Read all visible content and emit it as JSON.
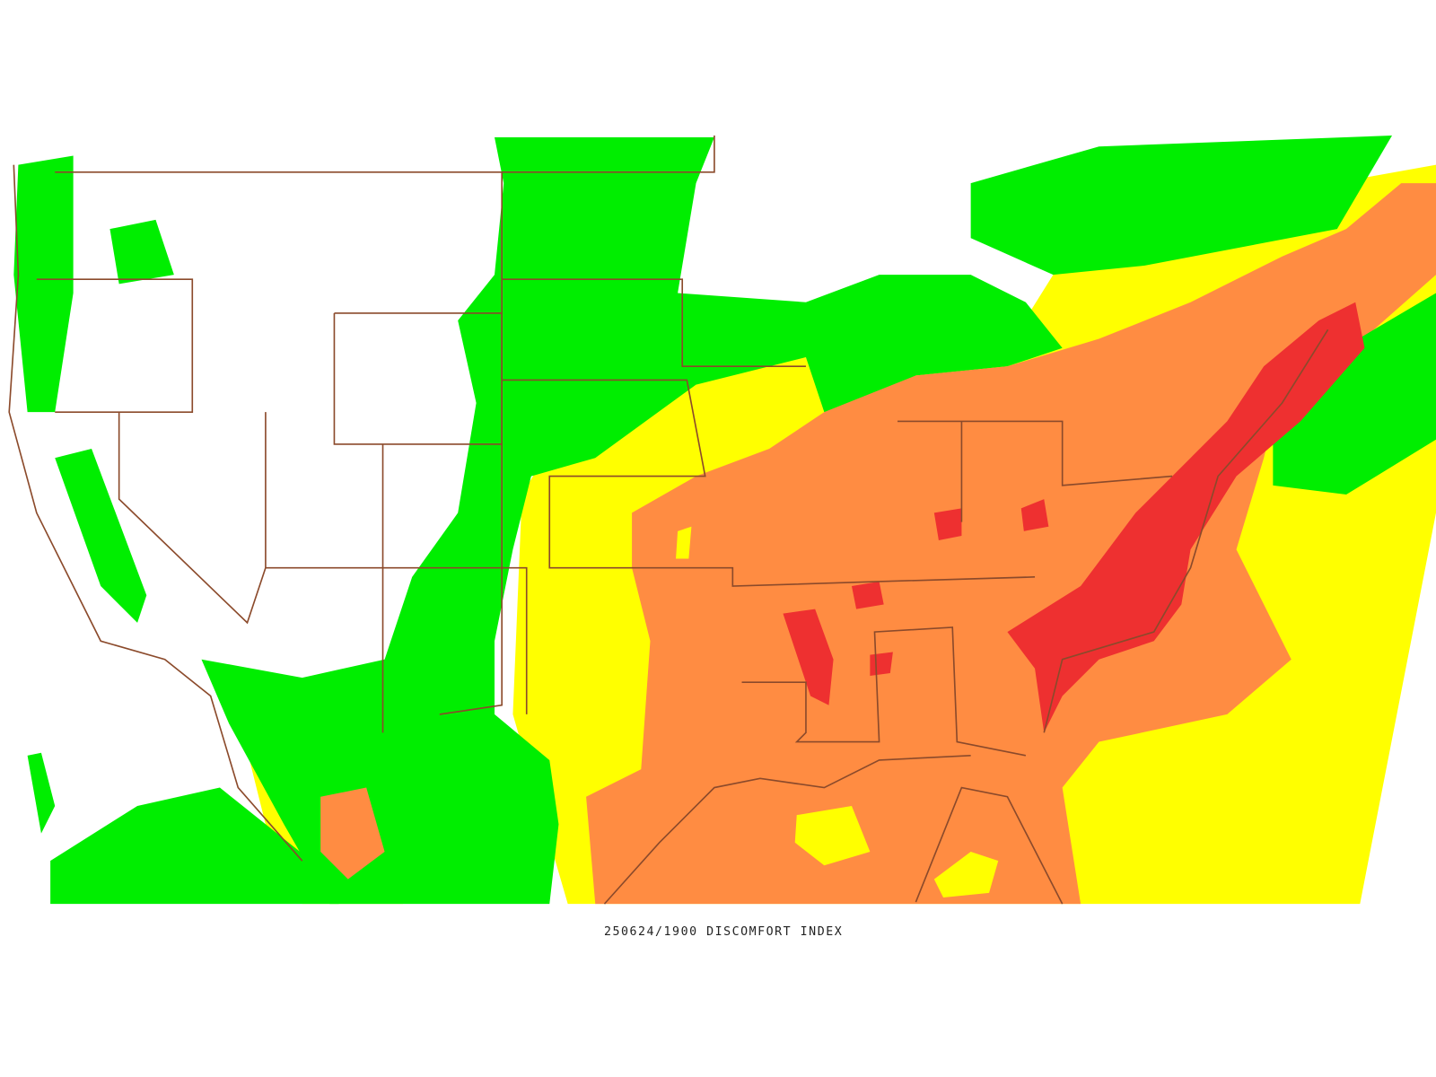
{
  "caption": "250624/1900 DISCOMFORT INDEX"
}
